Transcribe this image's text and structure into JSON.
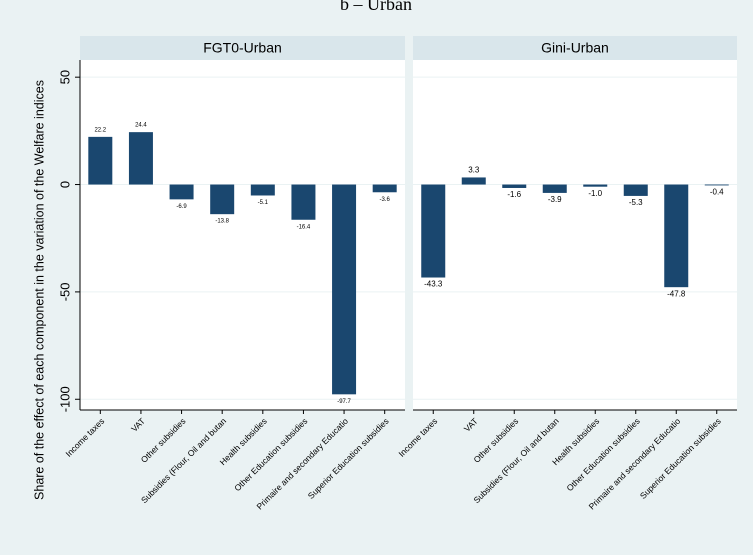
{
  "chart_data": {
    "type": "bar",
    "title": "b – Urban",
    "ylabel": "Share of the effect of each component in the variation of the Welfare indices",
    "categories": [
      "Income taxes",
      "VAT",
      "Other subsidies",
      "Subsidies (Flour, Oil and butan",
      "Health subsidies",
      "Other Education subsidies",
      "Primaire and secondary Educatio",
      "Superior Education subsidies"
    ],
    "color": "#1a476f",
    "ylim": [
      -105,
      58
    ],
    "yticks": [
      -100,
      -50,
      0,
      50
    ],
    "grid": true,
    "panels": [
      {
        "title": "FGT0-Urban",
        "values": [
          22.2,
          24.4,
          -6.9,
          -13.8,
          -5.1,
          -16.4,
          -97.7,
          -3.6
        ]
      },
      {
        "title": "Gini-Urban",
        "values": [
          -43.3,
          3.3,
          -1.6,
          -3.9,
          -1.0,
          -5.3,
          -47.8,
          -0.4
        ],
        "value_labels": [
          "-43.3",
          "3.3",
          "-1.6",
          "-3.9",
          "-1.0",
          "-5.3",
          "-47.8",
          "-0.4"
        ]
      }
    ]
  }
}
